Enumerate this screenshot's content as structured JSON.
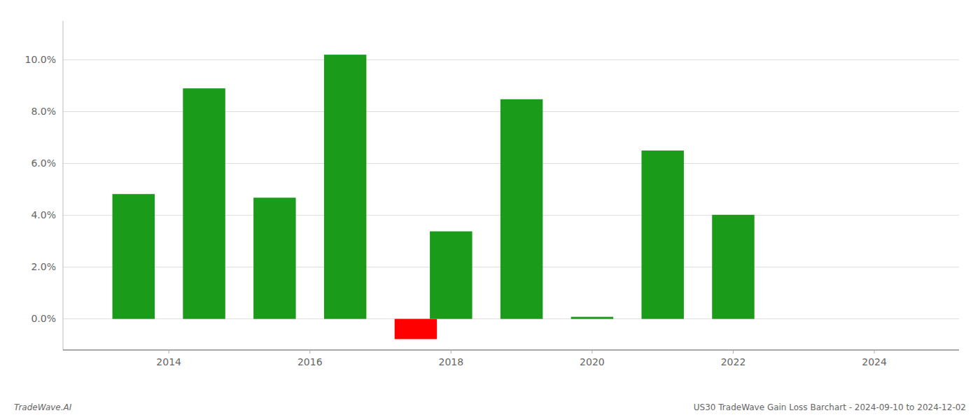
{
  "chart_data": {
    "type": "bar",
    "x": [
      2013.5,
      2014.5,
      2015.5,
      2016.5,
      2017.5,
      2018.0,
      2019.0,
      2020.0,
      2021.0,
      2022.0
    ],
    "values": [
      0.0482,
      0.089,
      0.0468,
      0.102,
      -0.0078,
      0.0338,
      0.0848,
      0.0008,
      0.065,
      0.0402
    ],
    "colors": [
      "#1a9c1a",
      "#1a9c1a",
      "#1a9c1a",
      "#1a9c1a",
      "#ff0000",
      "#1a9c1a",
      "#1a9c1a",
      "#1a9c1a",
      "#1a9c1a",
      "#1a9c1a"
    ],
    "xlim": [
      2012.5,
      2025.2
    ],
    "xticks": [
      2014,
      2016,
      2018,
      2020,
      2022,
      2024
    ],
    "ylim": [
      -0.012,
      0.115
    ],
    "yticks": [
      {
        "value": 0.0,
        "label": "0.0%"
      },
      {
        "value": 0.02,
        "label": "2.0%"
      },
      {
        "value": 0.04,
        "label": "4.0%"
      },
      {
        "value": 0.06,
        "label": "6.0%"
      },
      {
        "value": 0.08,
        "label": "8.0%"
      },
      {
        "value": 0.1,
        "label": "10.0%"
      }
    ],
    "grid": true,
    "annotations": [
      "TradeWave.AI",
      "US30 TradeWave Gain Loss Barchart - 2024-09-10 to 2024-12-02"
    ]
  }
}
